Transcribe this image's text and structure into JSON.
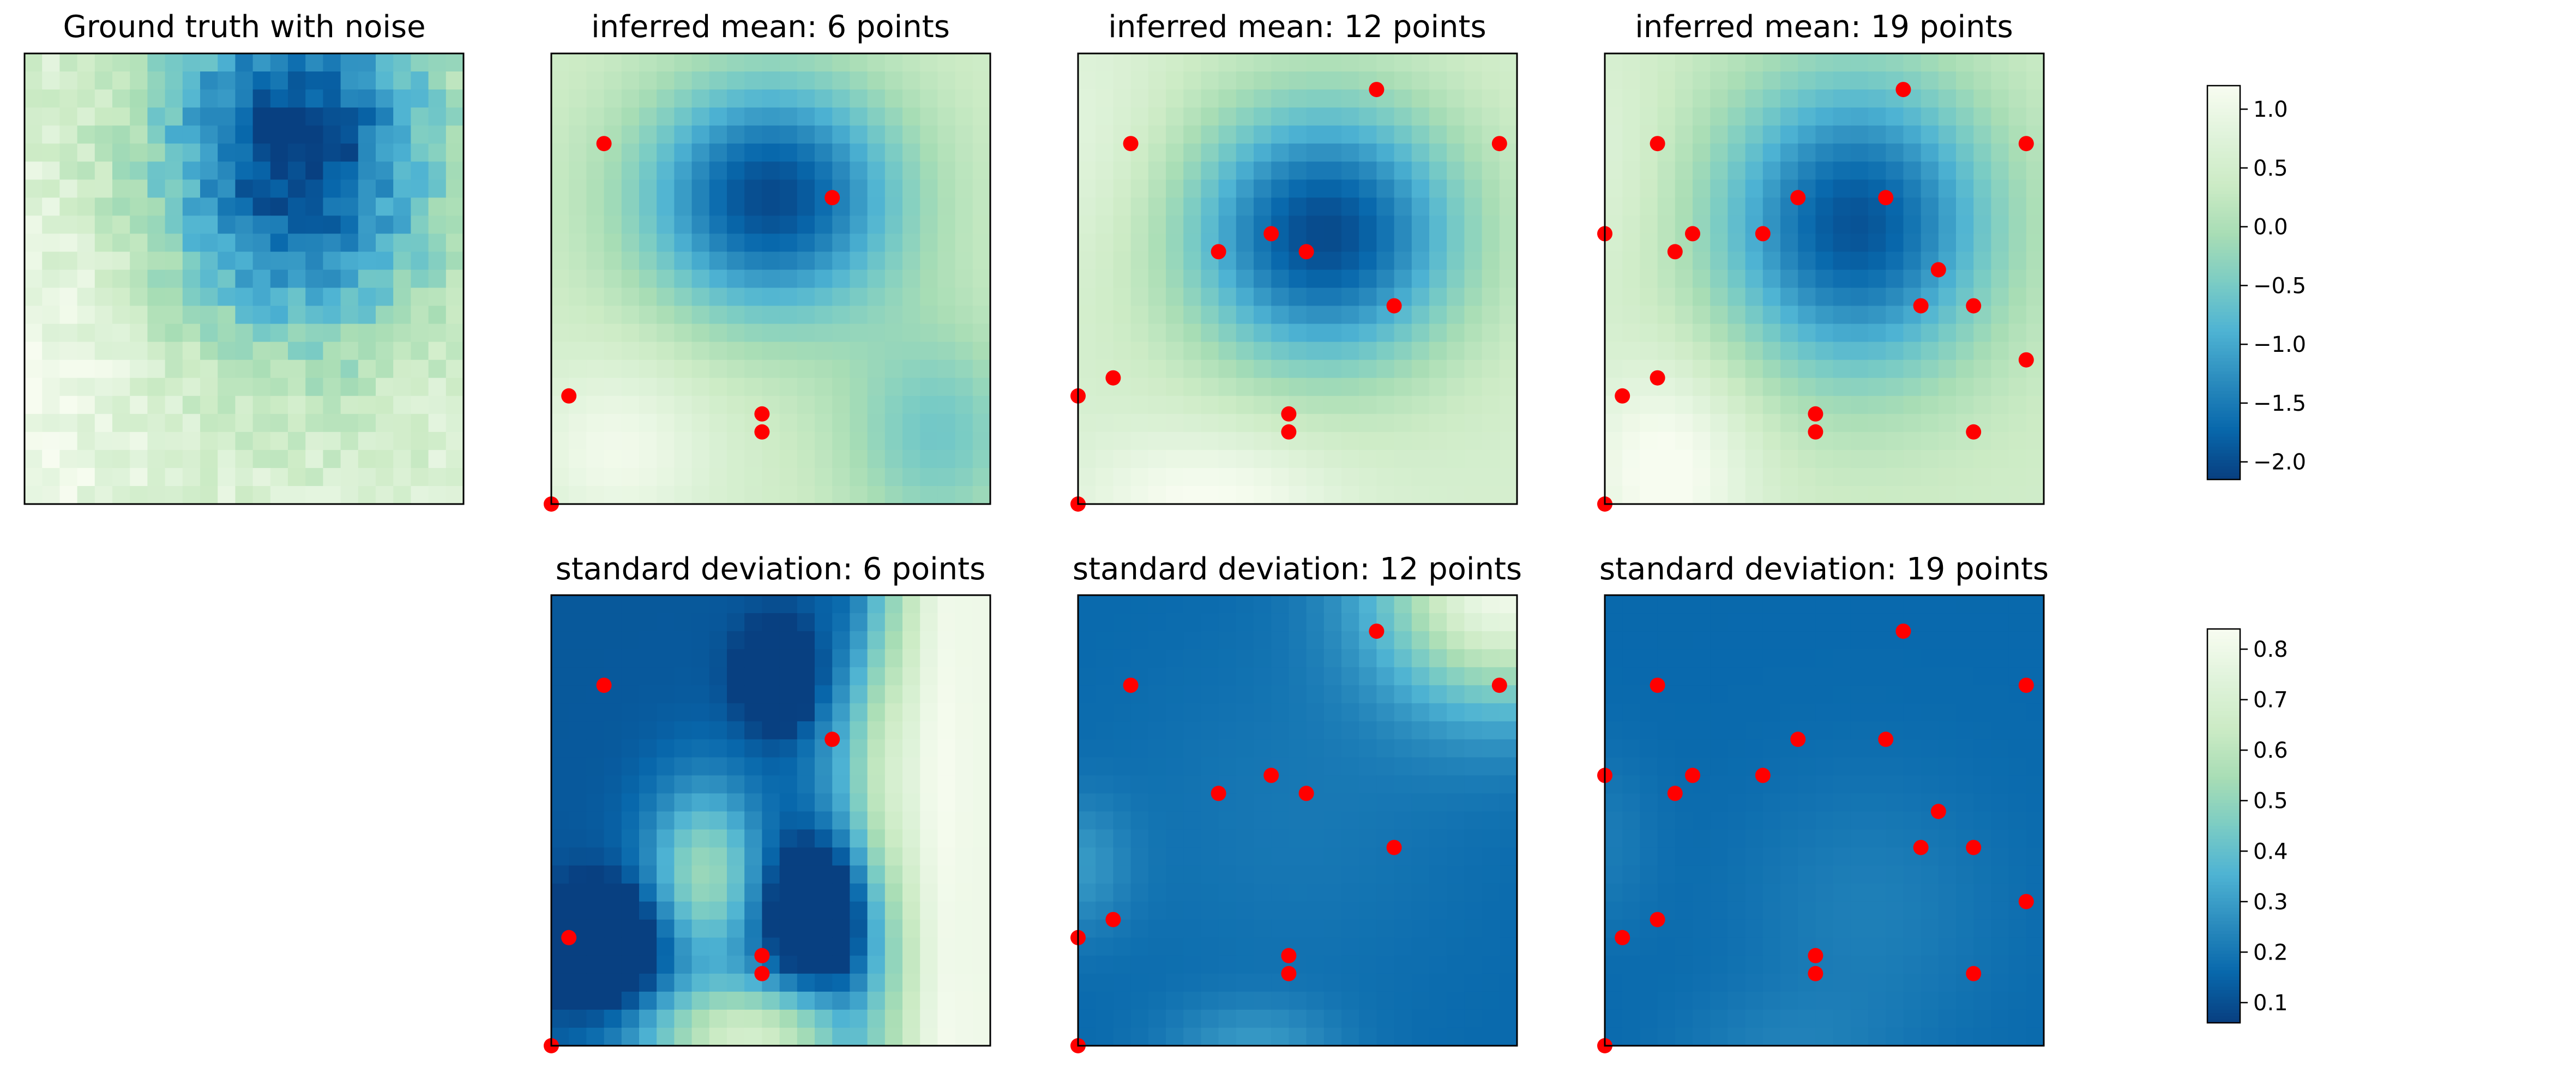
{
  "colors": {
    "colormap": [
      "#f7fcf0",
      "#e0f3db",
      "#ccebc5",
      "#a8ddb5",
      "#7bccc4",
      "#4eb3d3",
      "#2b8cbe",
      "#0868ac",
      "#084081"
    ],
    "point_color": "#ff0000",
    "frame_color": "#000000"
  },
  "chart_data": [
    {
      "type": "heatmap",
      "title": "Ground truth with noise",
      "grid_size": 25,
      "colorbar": "mean",
      "field": "ground_truth_noisy",
      "points": []
    },
    {
      "type": "heatmap",
      "title": "inferred mean: 6 points",
      "grid_size": 25,
      "colorbar": "mean",
      "field": "mean_6",
      "points": [
        [
          3,
          20
        ],
        [
          16,
          17
        ],
        [
          1,
          6
        ],
        [
          12,
          5
        ],
        [
          12,
          4
        ],
        [
          0,
          0
        ]
      ]
    },
    {
      "type": "heatmap",
      "title": "inferred mean: 12 points",
      "grid_size": 25,
      "colorbar": "mean",
      "field": "mean_12",
      "points": [
        [
          17,
          23
        ],
        [
          3,
          20
        ],
        [
          24,
          20
        ],
        [
          11,
          15
        ],
        [
          8,
          14
        ],
        [
          13,
          14
        ],
        [
          18,
          11
        ],
        [
          0,
          6
        ],
        [
          2,
          7
        ],
        [
          12,
          5
        ],
        [
          12,
          4
        ],
        [
          0,
          0
        ]
      ]
    },
    {
      "type": "heatmap",
      "title": "inferred mean: 19 points",
      "grid_size": 25,
      "colorbar": "mean",
      "field": "mean_19",
      "points": [
        [
          17,
          23
        ],
        [
          3,
          20
        ],
        [
          24,
          20
        ],
        [
          11,
          17
        ],
        [
          16,
          17
        ],
        [
          0,
          15
        ],
        [
          5,
          15
        ],
        [
          9,
          15
        ],
        [
          4,
          14
        ],
        [
          19,
          13
        ],
        [
          18,
          11
        ],
        [
          21,
          11
        ],
        [
          24,
          8
        ],
        [
          1,
          6
        ],
        [
          3,
          7
        ],
        [
          12,
          5
        ],
        [
          12,
          4
        ],
        [
          21,
          4
        ],
        [
          0,
          0
        ]
      ]
    },
    {
      "type": "heatmap",
      "title": "standard deviation: 6 points",
      "grid_size": 25,
      "colorbar": "std",
      "field": "std_6",
      "points": [
        [
          3,
          20
        ],
        [
          16,
          17
        ],
        [
          1,
          6
        ],
        [
          12,
          5
        ],
        [
          12,
          4
        ],
        [
          0,
          0
        ]
      ]
    },
    {
      "type": "heatmap",
      "title": "standard deviation: 12 points",
      "grid_size": 25,
      "colorbar": "std",
      "field": "std_12",
      "points": [
        [
          17,
          23
        ],
        [
          3,
          20
        ],
        [
          24,
          20
        ],
        [
          11,
          15
        ],
        [
          8,
          14
        ],
        [
          13,
          14
        ],
        [
          18,
          11
        ],
        [
          0,
          6
        ],
        [
          2,
          7
        ],
        [
          12,
          5
        ],
        [
          12,
          4
        ],
        [
          0,
          0
        ]
      ]
    },
    {
      "type": "heatmap",
      "title": "standard deviation: 19 points",
      "grid_size": 25,
      "colorbar": "std",
      "field": "std_19",
      "points": [
        [
          17,
          23
        ],
        [
          3,
          20
        ],
        [
          24,
          20
        ],
        [
          11,
          17
        ],
        [
          16,
          17
        ],
        [
          0,
          15
        ],
        [
          5,
          15
        ],
        [
          9,
          15
        ],
        [
          4,
          14
        ],
        [
          19,
          13
        ],
        [
          18,
          11
        ],
        [
          21,
          11
        ],
        [
          24,
          8
        ],
        [
          1,
          6
        ],
        [
          3,
          7
        ],
        [
          12,
          5
        ],
        [
          12,
          4
        ],
        [
          21,
          4
        ],
        [
          0,
          0
        ]
      ]
    }
  ],
  "colorbars": {
    "mean": {
      "min": -2.15,
      "max": 1.2,
      "ticks": [
        "1.0",
        "0.5",
        "0.0",
        "−0.5",
        "−1.0",
        "−1.5",
        "−2.0"
      ],
      "tick_values": [
        1.0,
        0.5,
        0.0,
        -0.5,
        -1.0,
        -1.5,
        -2.0
      ]
    },
    "std": {
      "min": 0.06,
      "max": 0.84,
      "ticks": [
        "0.8",
        "0.7",
        "0.6",
        "0.5",
        "0.4",
        "0.3",
        "0.2",
        "0.1"
      ],
      "tick_values": [
        0.8,
        0.7,
        0.6,
        0.5,
        0.4,
        0.3,
        0.2,
        0.1
      ]
    }
  }
}
